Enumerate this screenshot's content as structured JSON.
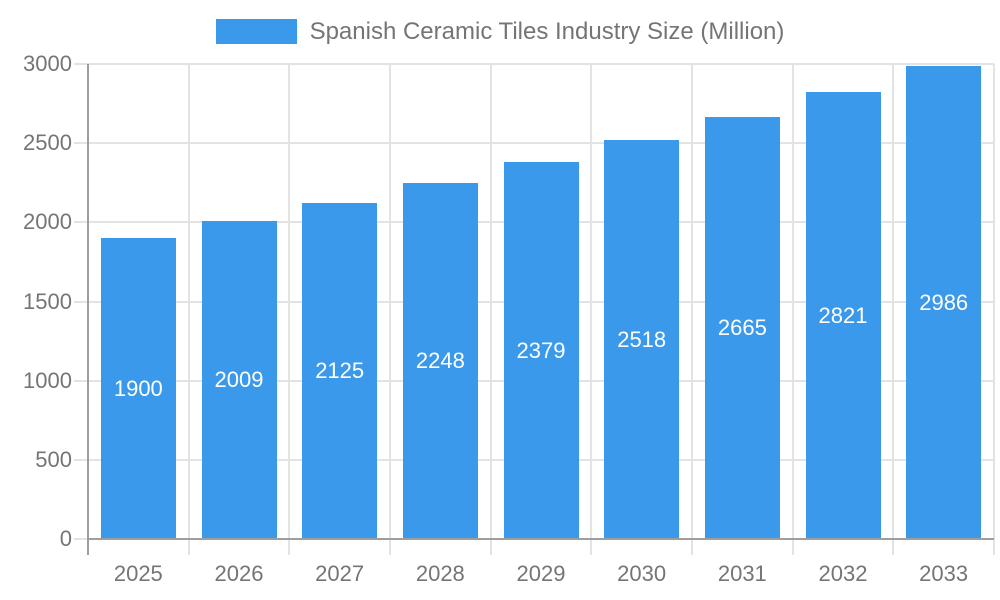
{
  "chart_data": {
    "type": "bar",
    "title": "Spanish Ceramic Tiles Industry Size (Million)",
    "categories": [
      "2025",
      "2026",
      "2027",
      "2028",
      "2029",
      "2030",
      "2031",
      "2032",
      "2033"
    ],
    "values": [
      1900,
      2009,
      2125,
      2248,
      2379,
      2518,
      2665,
      2821,
      2986
    ],
    "value_labels_position": "inside-center",
    "xlabel": "",
    "ylabel": "",
    "ylim": [
      0,
      3000
    ],
    "yticks": [
      0,
      500,
      1000,
      1500,
      2000,
      2500,
      3000
    ],
    "grid": "both",
    "legend_position": "top-center",
    "colors": {
      "bar": "#3b99ec",
      "gridline": "#e3e3e3",
      "axis_line": "#9e9e9e",
      "axis_text": "#757575",
      "value_label_text": "#ffffff",
      "background": "#ffffff"
    }
  }
}
